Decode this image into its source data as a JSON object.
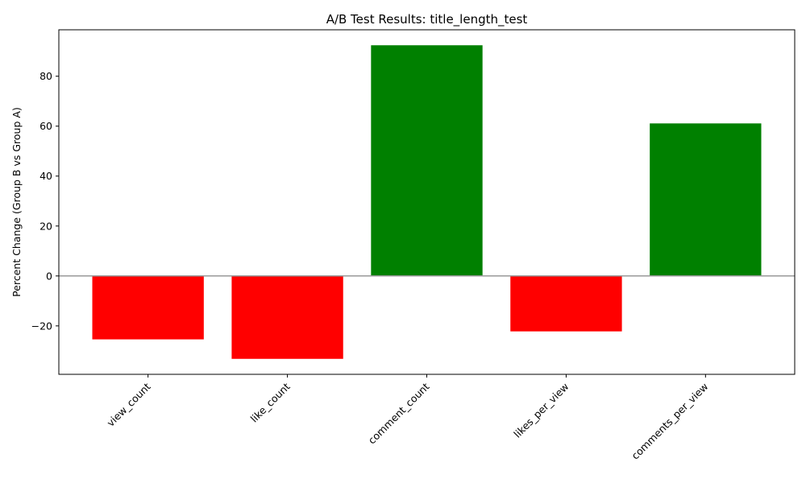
{
  "chart_data": {
    "type": "bar",
    "title": "A/B Test Results: title_length_test",
    "xlabel": "",
    "ylabel": "Percent Change (Group B vs Group A)",
    "categories": [
      "view_count",
      "like_count",
      "comment_count",
      "likes_per_view",
      "comments_per_view"
    ],
    "values": [
      -25.4,
      -33.2,
      92.4,
      -22.2,
      61.1
    ],
    "ylim": [
      -39.4,
      98.6
    ],
    "yticks": [
      -20,
      0,
      20,
      40,
      60,
      80
    ],
    "ytick_labels": [
      "−20",
      "0",
      "20",
      "40",
      "60",
      "80"
    ],
    "grid": false,
    "legend": "none",
    "zero_line": true,
    "xtick_rotation_deg": 45,
    "colors": {
      "positive": "#008000",
      "negative": "#ff0000",
      "zero_line": "#999999",
      "axes": "#000000"
    }
  }
}
